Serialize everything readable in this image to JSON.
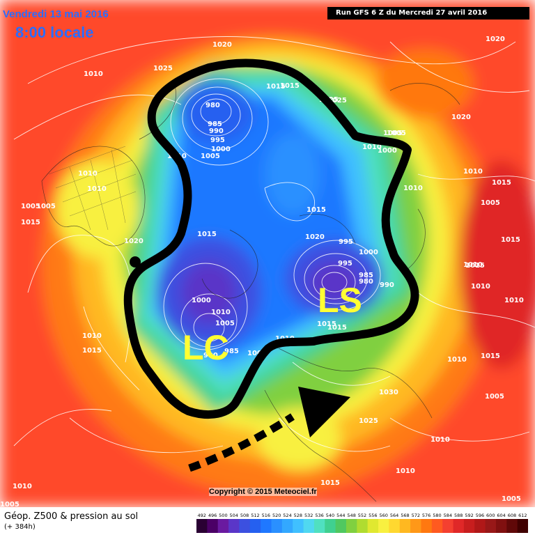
{
  "map": {
    "title_date": "Vendredi 13 mai 2016",
    "title_time": "8:00 locale",
    "run_info": "Run GFS 6 Z du Mercredi 27 avril 2016",
    "copyright": "Copyright © 2015 Meteociel.fr",
    "field_title": "Géop. Z500 & pression au sol",
    "forecast_hours": "(+ 384h)",
    "annotations": {
      "low_1": "LC",
      "low_2": "LS"
    },
    "pressure_labels": [
      "1010",
      "1020",
      "1025",
      "1015",
      "985",
      "990",
      "995",
      "1000",
      "1005",
      "1010",
      "980",
      "1025",
      "1015",
      "1005",
      "1000",
      "1010",
      "1015",
      "1005",
      "1010",
      "1020",
      "1015",
      "1010",
      "1005",
      "1015",
      "1020",
      "995",
      "1000",
      "1005",
      "995",
      "985",
      "980",
      "990",
      "1015",
      "1000",
      "1005",
      "1010",
      "1010",
      "1015",
      "990",
      "985",
      "1000",
      "1010",
      "1010",
      "1015",
      "1025",
      "1020",
      "1030",
      "1025",
      "1010",
      "1015",
      "1010",
      "1010",
      "1005",
      "1010",
      "1015",
      "1005",
      "1010",
      "1015",
      "1010",
      "1015",
      "1005",
      "1010",
      "1020",
      "1015",
      "1010",
      "1005"
    ],
    "legend_values": [
      "492",
      "496",
      "500",
      "504",
      "508",
      "512",
      "516",
      "520",
      "524",
      "528",
      "532",
      "536",
      "540",
      "544",
      "548",
      "552",
      "556",
      "560",
      "564",
      "568",
      "572",
      "576",
      "580",
      "584",
      "588",
      "592",
      "596",
      "600",
      "604",
      "608",
      "612"
    ],
    "legend_colors": [
      "#2a0033",
      "#4b0066",
      "#6a1aa0",
      "#5a36c8",
      "#3c50e0",
      "#2560f0",
      "#1f78ff",
      "#2a90ff",
      "#33a8ff",
      "#40c0ff",
      "#50d8f0",
      "#50e0c0",
      "#40d090",
      "#50c860",
      "#80d040",
      "#b0dc30",
      "#e0e830",
      "#f8f040",
      "#ffd830",
      "#ffb820",
      "#ff9818",
      "#ff7810",
      "#ff5a20",
      "#f44030",
      "#e02828",
      "#c81e1e",
      "#b01818",
      "#981818",
      "#801010",
      "#600808",
      "#400000"
    ]
  }
}
